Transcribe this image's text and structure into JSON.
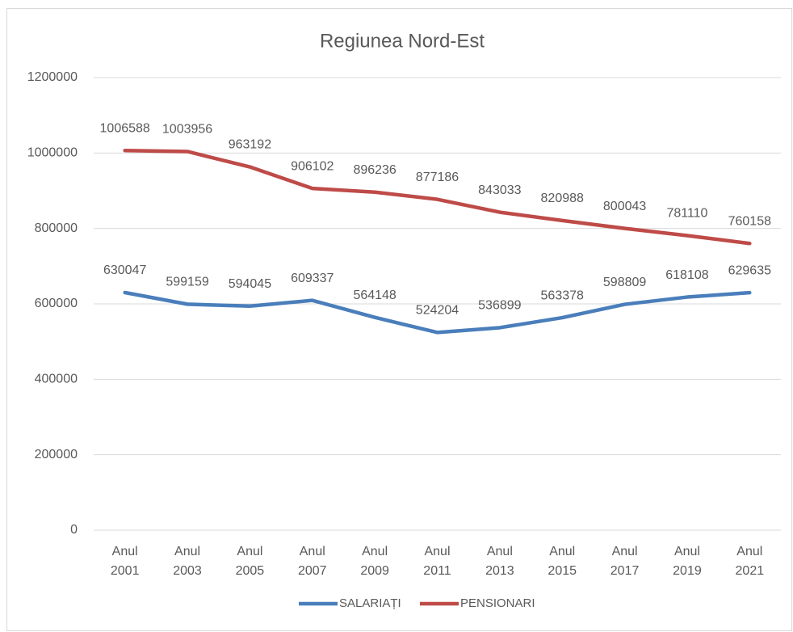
{
  "chart_data": {
    "type": "line",
    "title": "Regiunea Nord-Est",
    "categories": [
      "Anul 2001",
      "Anul 2003",
      "Anul 2005",
      "Anul 2007",
      "Anul 2009",
      "Anul 2011",
      "Anul 2013",
      "Anul 2015",
      "Anul 2017",
      "Anul 2019",
      "Anul 2021"
    ],
    "series": [
      {
        "name": "SALARIAȚI",
        "color": "#4a7ebb",
        "values": [
          630047,
          599159,
          594045,
          609337,
          564148,
          524204,
          536899,
          563378,
          598809,
          618108,
          629635
        ]
      },
      {
        "name": "PENSIONARI",
        "color": "#be4b48",
        "values": [
          1006588,
          1003956,
          963192,
          906102,
          896236,
          877186,
          843033,
          820988,
          800043,
          781110,
          760158
        ]
      }
    ],
    "ylim": [
      0,
      1200000
    ],
    "yticks": [
      0,
      200000,
      400000,
      600000,
      800000,
      1000000,
      1200000
    ],
    "grid": true,
    "legend": "bottom"
  }
}
